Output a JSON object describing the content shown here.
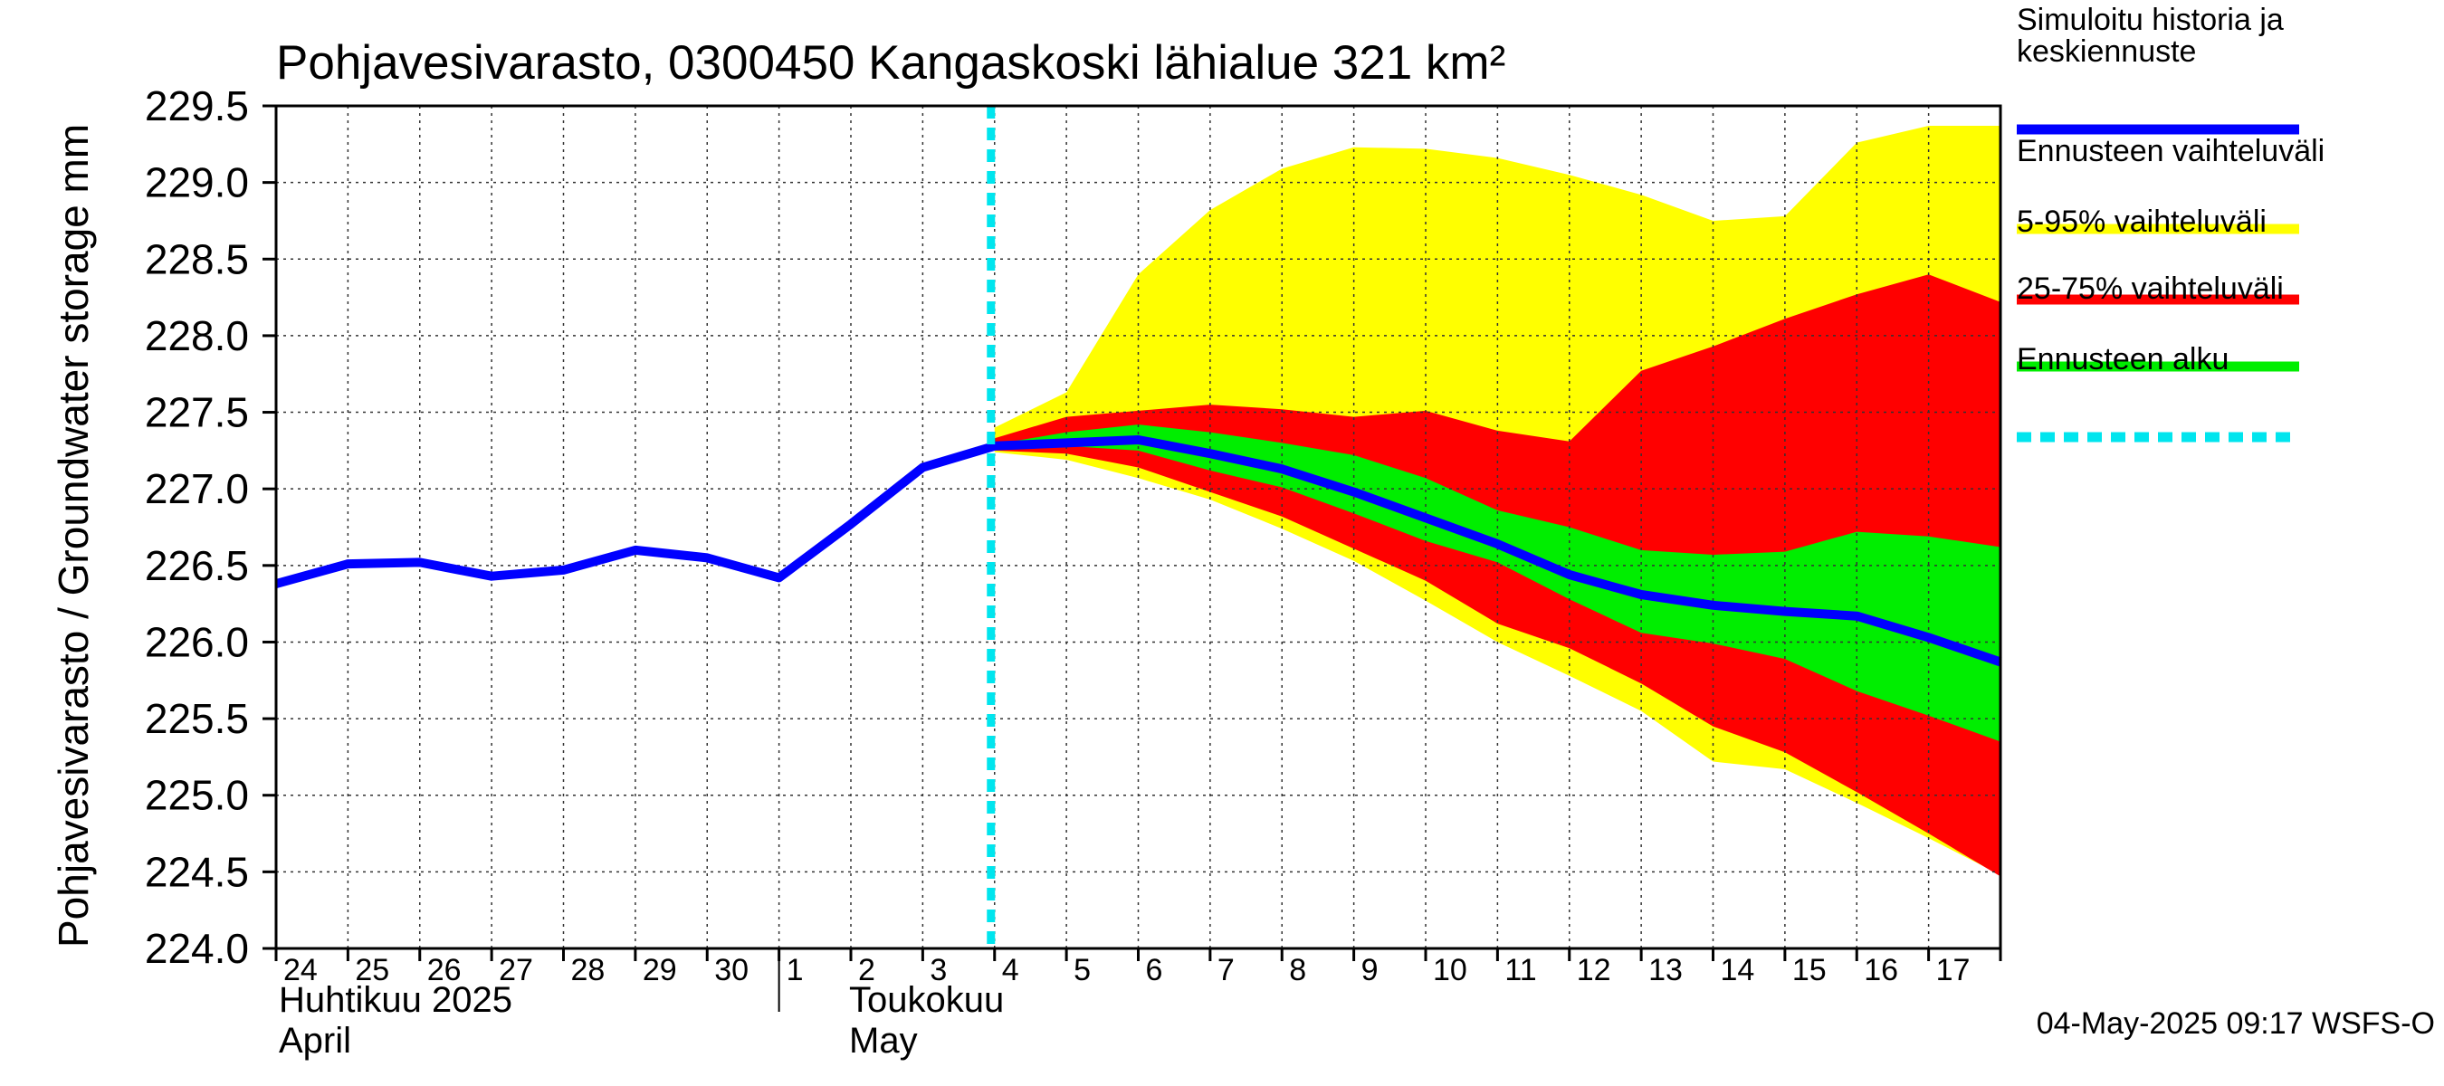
{
  "chart_data": {
    "type": "area",
    "title": "Pohjavesivarasto, 0300450 Kangaskoski lähialue 321 km²",
    "ylabel": "Pohjavesivarasto / Groundwater storage   mm",
    "ylim": [
      224.0,
      229.5
    ],
    "ytick_values": [
      224.0,
      224.5,
      225.0,
      225.5,
      226.0,
      226.5,
      227.0,
      227.5,
      228.0,
      228.5,
      229.0,
      229.5
    ],
    "ytick_labels": [
      "224.0",
      "224.5",
      "225.0",
      "225.5",
      "226.0",
      "226.5",
      "227.0",
      "227.5",
      "228.0",
      "228.5",
      "229.0",
      "229.5"
    ],
    "x_start_day": 24,
    "x_end_day": 48,
    "day_labels": [
      {
        "day": 24,
        "label": "24"
      },
      {
        "day": 25,
        "label": "25"
      },
      {
        "day": 26,
        "label": "26"
      },
      {
        "day": 27,
        "label": "27"
      },
      {
        "day": 28,
        "label": "28"
      },
      {
        "day": 29,
        "label": "29"
      },
      {
        "day": 30,
        "label": "30"
      },
      {
        "day": 31,
        "label": "1"
      },
      {
        "day": 32,
        "label": "2"
      },
      {
        "day": 33,
        "label": "3"
      },
      {
        "day": 34,
        "label": "4"
      },
      {
        "day": 35,
        "label": "5"
      },
      {
        "day": 36,
        "label": "6"
      },
      {
        "day": 37,
        "label": "7"
      },
      {
        "day": 38,
        "label": "8"
      },
      {
        "day": 39,
        "label": "9"
      },
      {
        "day": 40,
        "label": "10"
      },
      {
        "day": 41,
        "label": "11"
      },
      {
        "day": 42,
        "label": "12"
      },
      {
        "day": 43,
        "label": "13"
      },
      {
        "day": 44,
        "label": "14"
      },
      {
        "day": 45,
        "label": "15"
      },
      {
        "day": 46,
        "label": "16"
      },
      {
        "day": 47,
        "label": "17"
      }
    ],
    "month_labels": {
      "april_fi": "Huhtikuu  2025",
      "april_en": "April",
      "may_fi": "Toukokuu",
      "may_en": "May"
    },
    "month_divider_day": 31,
    "forecast_start_day": 34,
    "series": [
      {
        "name": "Simuloitu historia ja keskiennuste",
        "color": "#0000ff",
        "x": [
          24,
          25,
          26,
          27,
          28,
          29,
          30,
          31,
          32,
          33,
          34,
          35,
          36,
          37,
          38,
          39,
          40,
          41,
          42,
          43,
          44,
          45,
          46,
          47,
          48
        ],
        "values": [
          226.38,
          226.51,
          226.52,
          226.43,
          226.47,
          226.6,
          226.55,
          226.42,
          226.77,
          227.14,
          227.28,
          227.3,
          227.32,
          227.23,
          227.13,
          226.98,
          226.81,
          226.64,
          226.44,
          226.31,
          226.24,
          226.2,
          226.17,
          226.03,
          225.87
        ]
      }
    ],
    "bands": [
      {
        "name": "Ennusteen vaihteluväli",
        "color": "#ffff00",
        "x": [
          34,
          35,
          36,
          37,
          38,
          39,
          40,
          41,
          42,
          43,
          44,
          45,
          46,
          47,
          48
        ],
        "upper": [
          227.4,
          227.63,
          228.4,
          228.82,
          229.09,
          229.23,
          229.22,
          229.16,
          229.05,
          228.92,
          228.75,
          228.78,
          229.26,
          229.37,
          229.37
        ],
        "lower": [
          227.24,
          227.19,
          227.07,
          226.93,
          226.74,
          226.53,
          226.27,
          226.0,
          225.78,
          225.55,
          225.22,
          225.17,
          224.95,
          224.72,
          224.48
        ]
      },
      {
        "name": "5-95% vaihteluväli",
        "color": "#ff0000",
        "x": [
          34,
          35,
          36,
          37,
          38,
          39,
          40,
          41,
          42,
          43,
          44,
          45,
          46,
          47,
          48
        ],
        "upper": [
          227.33,
          227.47,
          227.51,
          227.55,
          227.52,
          227.47,
          227.51,
          227.38,
          227.31,
          227.77,
          227.93,
          228.11,
          228.27,
          228.4,
          228.22
        ],
        "lower": [
          227.25,
          227.23,
          227.14,
          226.98,
          226.82,
          226.61,
          226.4,
          226.12,
          225.96,
          225.73,
          225.45,
          225.28,
          225.02,
          224.75,
          224.47
        ]
      },
      {
        "name": "25-75% vaihteluväli",
        "color": "#00ee00",
        "x": [
          34,
          35,
          36,
          37,
          38,
          39,
          40,
          41,
          42,
          43,
          44,
          45,
          46,
          47,
          48
        ],
        "upper": [
          227.29,
          227.37,
          227.42,
          227.37,
          227.3,
          227.22,
          227.07,
          226.86,
          226.75,
          226.6,
          226.57,
          226.59,
          226.72,
          226.69,
          226.62
        ],
        "lower": [
          227.27,
          227.28,
          227.25,
          227.12,
          227.01,
          226.84,
          226.66,
          226.52,
          226.28,
          226.06,
          225.99,
          225.89,
          225.68,
          225.52,
          225.35
        ]
      }
    ],
    "legend": [
      {
        "label_lines": [
          "Simuloitu historia ja",
          "keskiennuste"
        ],
        "color": "#0000ff",
        "style": "solid"
      },
      {
        "label_lines": [
          "Ennusteen vaihteluväli"
        ],
        "color": "#ffff00",
        "style": "solid"
      },
      {
        "label_lines": [
          "5-95% vaihteluväli"
        ],
        "color": "#ff0000",
        "style": "solid"
      },
      {
        "label_lines": [
          "25-75% vaihteluväli"
        ],
        "color": "#00ee00",
        "style": "solid"
      },
      {
        "label_lines": [
          "Ennusteen alku"
        ],
        "color": "#00e5ee",
        "style": "dashed"
      }
    ],
    "legend_position": "right",
    "grid": true,
    "footer": "04-May-2025 09:17 WSFS-O"
  }
}
